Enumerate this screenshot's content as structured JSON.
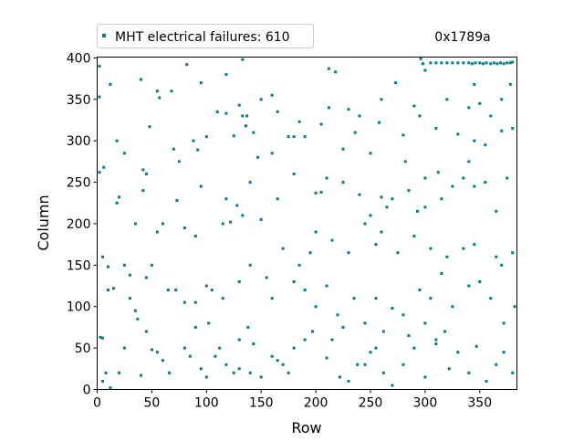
{
  "chart_data": {
    "type": "scatter",
    "title": "",
    "xlabel": "Row",
    "ylabel": "Column",
    "xlim": [
      0,
      384
    ],
    "ylim": [
      0,
      401
    ],
    "xticks": [
      0,
      50,
      100,
      150,
      200,
      250,
      300,
      350
    ],
    "yticks": [
      0,
      50,
      100,
      150,
      200,
      250,
      300,
      350,
      400
    ],
    "legend": {
      "label": "MHT electrical failures: 610",
      "placement": "top-left, above plot"
    },
    "annotation": "0x1789a",
    "grid": false,
    "color": "#008080",
    "series": [
      {
        "name": "MHT electrical failures",
        "count": 610,
        "points": [
          [
            320,
            394
          ],
          [
            325,
            394
          ],
          [
            330,
            394
          ],
          [
            335,
            394
          ],
          [
            340,
            394
          ],
          [
            343,
            393
          ],
          [
            346,
            394
          ],
          [
            350,
            394
          ],
          [
            353,
            393
          ],
          [
            356,
            394
          ],
          [
            360,
            393
          ],
          [
            363,
            394
          ],
          [
            366,
            393
          ],
          [
            369,
            394
          ],
          [
            372,
            393
          ],
          [
            375,
            394
          ],
          [
            378,
            394
          ],
          [
            380,
            395
          ],
          [
            2,
            390
          ],
          [
            133,
            398
          ],
          [
            82,
            392
          ],
          [
            296,
            399
          ],
          [
            298,
            393
          ],
          [
            305,
            394
          ],
          [
            310,
            394
          ],
          [
            315,
            394
          ],
          [
            273,
            370
          ],
          [
            370,
            350
          ],
          [
            378,
            368
          ],
          [
            345,
            368
          ],
          [
            300,
            385
          ],
          [
            212,
            387
          ],
          [
            218,
            383
          ],
          [
            40,
            374
          ],
          [
            12,
            368
          ],
          [
            2,
            353
          ],
          [
            57,
            352
          ],
          [
            130,
            343
          ],
          [
            133,
            330
          ],
          [
            137,
            330
          ],
          [
            150,
            350
          ],
          [
            165,
            335
          ],
          [
            212,
            340
          ],
          [
            205,
            320
          ],
          [
            185,
            323
          ],
          [
            190,
            305
          ],
          [
            180,
            305
          ],
          [
            175,
            305
          ],
          [
            230,
            338
          ],
          [
            240,
            330
          ],
          [
            290,
            342
          ],
          [
            295,
            330
          ],
          [
            310,
            315
          ],
          [
            320,
            350
          ],
          [
            340,
            340
          ],
          [
            350,
            345
          ],
          [
            360,
            330
          ],
          [
            370,
            312
          ],
          [
            380,
            315
          ],
          [
            18,
            300
          ],
          [
            48,
            317
          ],
          [
            25,
            285
          ],
          [
            100,
            305
          ],
          [
            110,
            335
          ],
          [
            118,
            333
          ],
          [
            125,
            306
          ],
          [
            136,
            318
          ],
          [
            147,
            280
          ],
          [
            160,
            285
          ],
          [
            236,
            310
          ],
          [
            258,
            322
          ],
          [
            280,
            307
          ],
          [
            330,
            308
          ],
          [
            345,
            300
          ],
          [
            355,
            295
          ],
          [
            2,
            262
          ],
          [
            6,
            268
          ],
          [
            42,
            265
          ],
          [
            45,
            260
          ],
          [
            70,
            290
          ],
          [
            75,
            275
          ],
          [
            95,
            245
          ],
          [
            118,
            230
          ],
          [
            128,
            222
          ],
          [
            140,
            250
          ],
          [
            165,
            230
          ],
          [
            180,
            260
          ],
          [
            200,
            237
          ],
          [
            205,
            238
          ],
          [
            210,
            255
          ],
          [
            225,
            250
          ],
          [
            240,
            235
          ],
          [
            250,
            210
          ],
          [
            260,
            232
          ],
          [
            265,
            220
          ],
          [
            270,
            230
          ],
          [
            285,
            240
          ],
          [
            293,
            215
          ],
          [
            300,
            220
          ],
          [
            315,
            230
          ],
          [
            325,
            245
          ],
          [
            335,
            255
          ],
          [
            345,
            245
          ],
          [
            355,
            250
          ],
          [
            365,
            215
          ],
          [
            375,
            255
          ],
          [
            18,
            225
          ],
          [
            20,
            232
          ],
          [
            35,
            200
          ],
          [
            42,
            240
          ],
          [
            55,
            190
          ],
          [
            60,
            200
          ],
          [
            73,
            228
          ],
          [
            80,
            195
          ],
          [
            90,
            185
          ],
          [
            115,
            200
          ],
          [
            122,
            202
          ],
          [
            133,
            210
          ],
          [
            150,
            205
          ],
          [
            170,
            170
          ],
          [
            185,
            150
          ],
          [
            195,
            165
          ],
          [
            200,
            190
          ],
          [
            215,
            180
          ],
          [
            230,
            165
          ],
          [
            245,
            200
          ],
          [
            255,
            175
          ],
          [
            260,
            190
          ],
          [
            275,
            165
          ],
          [
            290,
            185
          ],
          [
            305,
            170
          ],
          [
            320,
            160
          ],
          [
            335,
            170
          ],
          [
            345,
            175
          ],
          [
            365,
            160
          ],
          [
            370,
            150
          ],
          [
            380,
            165
          ],
          [
            5,
            160
          ],
          [
            10,
            148
          ],
          [
            25,
            150
          ],
          [
            30,
            138
          ],
          [
            45,
            135
          ],
          [
            50,
            150
          ],
          [
            65,
            120
          ],
          [
            72,
            120
          ],
          [
            80,
            105
          ],
          [
            90,
            105
          ],
          [
            100,
            125
          ],
          [
            105,
            120
          ],
          [
            115,
            110
          ],
          [
            130,
            130
          ],
          [
            140,
            150
          ],
          [
            155,
            135
          ],
          [
            160,
            110
          ],
          [
            180,
            130
          ],
          [
            190,
            120
          ],
          [
            200,
            100
          ],
          [
            210,
            125
          ],
          [
            220,
            90
          ],
          [
            235,
            110
          ],
          [
            245,
            80
          ],
          [
            255,
            110
          ],
          [
            262,
            70
          ],
          [
            270,
            98
          ],
          [
            285,
            65
          ],
          [
            295,
            120
          ],
          [
            305,
            110
          ],
          [
            315,
            140
          ],
          [
            325,
            100
          ],
          [
            340,
            125
          ],
          [
            350,
            130
          ],
          [
            360,
            110
          ],
          [
            372,
            80
          ],
          [
            382,
            100
          ],
          [
            10,
            120
          ],
          [
            15,
            122
          ],
          [
            30,
            110
          ],
          [
            35,
            95
          ],
          [
            37,
            85
          ],
          [
            45,
            70
          ],
          [
            50,
            48
          ],
          [
            55,
            45
          ],
          [
            20,
            20
          ],
          [
            25,
            50
          ],
          [
            40,
            17
          ],
          [
            5,
            62
          ],
          [
            3,
            63
          ],
          [
            80,
            50
          ],
          [
            85,
            40
          ],
          [
            95,
            25
          ],
          [
            100,
            15
          ],
          [
            108,
            40
          ],
          [
            112,
            50
          ],
          [
            118,
            30
          ],
          [
            125,
            20
          ],
          [
            130,
            25
          ],
          [
            140,
            20
          ],
          [
            150,
            15
          ],
          [
            160,
            40
          ],
          [
            165,
            35
          ],
          [
            170,
            30
          ],
          [
            175,
            20
          ],
          [
            180,
            50
          ],
          [
            190,
            60
          ],
          [
            197,
            70
          ],
          [
            210,
            38
          ],
          [
            222,
            15
          ],
          [
            238,
            30
          ],
          [
            250,
            45
          ],
          [
            262,
            20
          ],
          [
            270,
            5
          ],
          [
            280,
            30
          ],
          [
            290,
            50
          ],
          [
            300,
            15
          ],
          [
            310,
            60
          ],
          [
            322,
            25
          ],
          [
            330,
            45
          ],
          [
            340,
            20
          ],
          [
            347,
            52
          ],
          [
            356,
            10
          ],
          [
            365,
            30
          ],
          [
            372,
            45
          ],
          [
            380,
            20
          ],
          [
            8,
            20
          ],
          [
            5,
            10
          ],
          [
            12,
            2
          ],
          [
            60,
            35
          ],
          [
            66,
            20
          ],
          [
            90,
            75
          ],
          [
            102,
            80
          ],
          [
            130,
            60
          ],
          [
            138,
            75
          ],
          [
            143,
            55
          ],
          [
            215,
            60
          ],
          [
            225,
            75
          ],
          [
            245,
            30
          ],
          [
            280,
            90
          ],
          [
            300,
            80
          ],
          [
            310,
            55
          ],
          [
            318,
            70
          ],
          [
            230,
            10
          ],
          [
            255,
            50
          ],
          [
            55,
            360
          ],
          [
            68,
            360
          ],
          [
            95,
            370
          ],
          [
            118,
            380
          ],
          [
            160,
            355
          ],
          [
            143,
            310
          ],
          [
            260,
            350
          ],
          [
            282,
            275
          ],
          [
            300,
            255
          ],
          [
            312,
            262
          ],
          [
            340,
            275
          ],
          [
            250,
            285
          ],
          [
            225,
            290
          ],
          [
            88,
            300
          ],
          [
            92,
            289
          ]
        ]
      }
    ]
  }
}
